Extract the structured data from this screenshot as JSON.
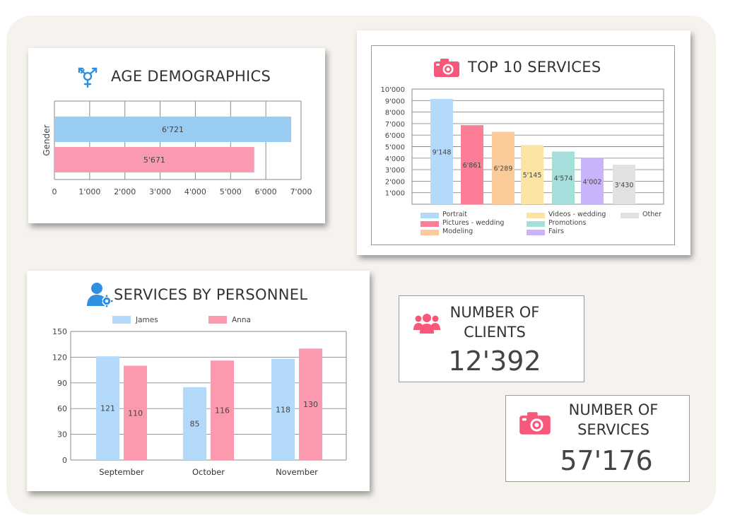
{
  "colors": {
    "blue": "#99ccf2",
    "pink": "#f99ab1",
    "red": "#fb7d96",
    "peach": "#fbcb99",
    "yellow": "#fde4a2",
    "teal": "#a6dedb",
    "purple": "#c9b3fb",
    "gray": "#e1e1e1",
    "icon_blue": "#2f8fe0",
    "icon_pink": "#f7587a"
  },
  "age": {
    "title": "AGE DEMOGRAPHICS",
    "icon": "gender-icon"
  },
  "services": {
    "title": "TOP 10 SERVICES",
    "icon": "camera-icon"
  },
  "personnel": {
    "title": "SERVICES BY PERSONNEL",
    "icon": "user-gear-icon"
  },
  "clients": {
    "label": "NUMBER OF\nCLIENTS",
    "value": "12'392",
    "icon": "people-group-icon"
  },
  "service_count": {
    "label": "NUMBER OF\nSERVICES",
    "value": "57'176",
    "icon": "camera-icon"
  },
  "chart_data": [
    {
      "type": "bar",
      "orientation": "horizontal",
      "ylabel": "Gender",
      "xlim": [
        0,
        7000
      ],
      "xticks": [
        "0",
        "1'000",
        "2'000",
        "3'000",
        "4'000",
        "5'000",
        "6'000",
        "7'000"
      ],
      "bars": [
        {
          "value": 6721,
          "label": "6'721",
          "color": "#99ccf2"
        },
        {
          "value": 5671,
          "label": "5'671",
          "color": "#f99ab1"
        }
      ],
      "grid": true
    },
    {
      "type": "bar",
      "ylim": [
        0,
        10000
      ],
      "yticks": [
        "1'000",
        "2'000",
        "3'000",
        "4'000",
        "5'000",
        "6'000",
        "7'000",
        "8'000",
        "9'000",
        "10'000"
      ],
      "values": [
        9148,
        6861,
        6289,
        5145,
        4574,
        4002,
        3430
      ],
      "labels": [
        "9'148",
        "6'861",
        "6'289",
        "5'145",
        "4'574",
        "4'002",
        "3'430"
      ],
      "colors": [
        "#b3d9fb",
        "#fb7d96",
        "#fbcb99",
        "#fde4a2",
        "#a6dedb",
        "#c9b3fb",
        "#e1e1e1"
      ],
      "legend": [
        {
          "name": "Portrait",
          "color": "#b3d9fb"
        },
        {
          "name": "Pictures - wedding",
          "color": "#fb7d96"
        },
        {
          "name": "Modeling",
          "color": "#fbcb99"
        },
        {
          "name": "Videos - wedding",
          "color": "#fde4a2"
        },
        {
          "name": "Promotions",
          "color": "#a6dedb"
        },
        {
          "name": "Fairs",
          "color": "#c9b3fb"
        },
        {
          "name": "Other",
          "color": "#e1e1e1"
        }
      ],
      "legend_position": "bottom",
      "grid": true
    },
    {
      "type": "bar",
      "categories": [
        "September",
        "October",
        "November"
      ],
      "series": [
        {
          "name": "James",
          "values": [
            121,
            85,
            118
          ],
          "color": "#b3d9fb"
        },
        {
          "name": "Anna",
          "values": [
            110,
            116,
            130
          ],
          "color": "#fb9aae"
        }
      ],
      "ylim": [
        0,
        150
      ],
      "yticks": [
        "0",
        "30",
        "60",
        "90",
        "120",
        "150"
      ],
      "legend_position": "top",
      "grid": true
    }
  ]
}
